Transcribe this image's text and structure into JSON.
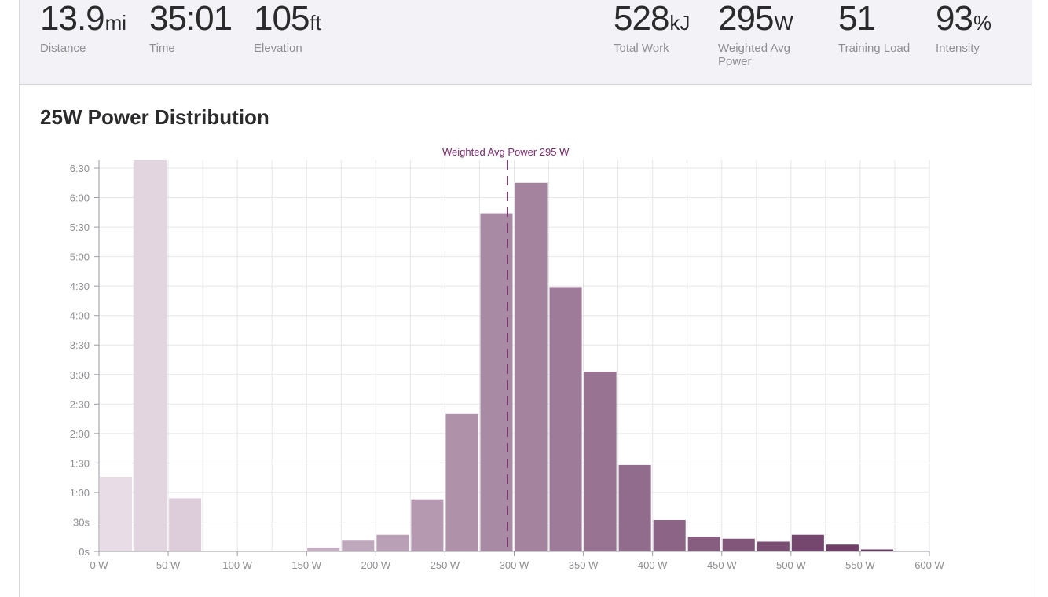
{
  "stats_left": [
    {
      "value": "13.9",
      "unit": "mi",
      "label": "Distance"
    },
    {
      "value": "35:01",
      "unit": "",
      "label": "Time"
    },
    {
      "value": "105",
      "unit": "ft",
      "label": "Elevation"
    }
  ],
  "stats_right": [
    {
      "value": "528",
      "unit": "kJ",
      "label": "Total Work"
    },
    {
      "value": "295",
      "unit": "W",
      "label": "Weighted Avg Power"
    },
    {
      "value": "51",
      "unit": "",
      "label": "Training Load"
    },
    {
      "value": "93",
      "unit": "%",
      "label": "Intensity"
    }
  ],
  "chart_title": "25W Power Distribution",
  "colors": {
    "accent": "#7a2a6e",
    "axis_text": "#8e8e93",
    "grid": "#e6e6e9",
    "bar_light": "#e8dce6",
    "bar_dark": "#6a3862"
  },
  "chart_data": {
    "type": "bar",
    "title": "25W Power Distribution",
    "xlabel": "",
    "ylabel": "",
    "bin_width": 25,
    "x_ticks": [
      "0 W",
      "50 W",
      "100 W",
      "150 W",
      "200 W",
      "250 W",
      "300 W",
      "350 W",
      "400 W",
      "450 W",
      "500 W",
      "550 W",
      "600 W"
    ],
    "x_tick_values": [
      0,
      50,
      100,
      150,
      200,
      250,
      300,
      350,
      400,
      450,
      500,
      550,
      600
    ],
    "y_ticks": [
      "0s",
      "30s",
      "1:00",
      "1:30",
      "2:00",
      "2:30",
      "3:00",
      "3:30",
      "4:00",
      "4:30",
      "5:00",
      "5:30",
      "6:00",
      "6:30"
    ],
    "y_tick_values": [
      0,
      30,
      60,
      90,
      120,
      150,
      180,
      210,
      240,
      270,
      300,
      330,
      360,
      390
    ],
    "xlim": [
      0,
      600
    ],
    "ylim": [
      0,
      398
    ],
    "bins": [
      {
        "start": 0,
        "seconds": 76
      },
      {
        "start": 25,
        "seconds": 398
      },
      {
        "start": 50,
        "seconds": 54
      },
      {
        "start": 75,
        "seconds": 0
      },
      {
        "start": 100,
        "seconds": 0
      },
      {
        "start": 125,
        "seconds": 0
      },
      {
        "start": 150,
        "seconds": 4
      },
      {
        "start": 175,
        "seconds": 11
      },
      {
        "start": 200,
        "seconds": 17
      },
      {
        "start": 225,
        "seconds": 53
      },
      {
        "start": 250,
        "seconds": 140
      },
      {
        "start": 275,
        "seconds": 344
      },
      {
        "start": 300,
        "seconds": 375
      },
      {
        "start": 325,
        "seconds": 269
      },
      {
        "start": 350,
        "seconds": 183
      },
      {
        "start": 375,
        "seconds": 88
      },
      {
        "start": 400,
        "seconds": 32
      },
      {
        "start": 425,
        "seconds": 15
      },
      {
        "start": 450,
        "seconds": 13
      },
      {
        "start": 475,
        "seconds": 10
      },
      {
        "start": 500,
        "seconds": 17
      },
      {
        "start": 525,
        "seconds": 7
      },
      {
        "start": 550,
        "seconds": 2
      }
    ],
    "annotations": [
      {
        "type": "vline",
        "x": 295,
        "label": "Weighted Avg Power 295 W"
      }
    ],
    "grid": true
  }
}
